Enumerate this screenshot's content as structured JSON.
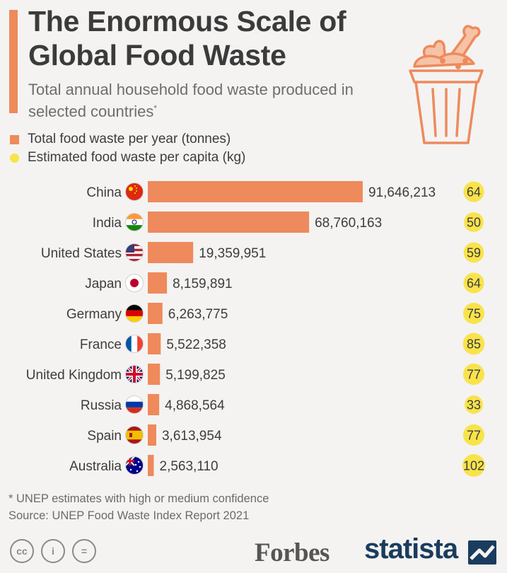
{
  "header": {
    "title": "The Enormous Scale of Global Food Waste",
    "subtitle": "Total annual household food waste produced in selected countries",
    "subtitle_mark": "*"
  },
  "legend": {
    "total_label": "Total food waste per year (tonnes)",
    "capita_label": "Estimated food waste per capita (kg)"
  },
  "chart_data": {
    "type": "bar",
    "orientation": "horizontal",
    "categories": [
      "China",
      "India",
      "United States",
      "Japan",
      "Germany",
      "France",
      "United Kingdom",
      "Russia",
      "Spain",
      "Australia"
    ],
    "series": [
      {
        "name": "Total food waste per year (tonnes)",
        "values": [
          91646213,
          68760163,
          19359951,
          8159891,
          6263775,
          5522358,
          5199825,
          4868564,
          3613954,
          2563110
        ],
        "labels": [
          "91,646,213",
          "68,760,163",
          "19,359,951",
          "8,159,891",
          "6,263,775",
          "5,522,358",
          "5,199,825",
          "4,868,564",
          "3,613,954",
          "2,563,110"
        ],
        "color": "#ee8a5c"
      },
      {
        "name": "Estimated food waste per capita (kg)",
        "values": [
          64,
          50,
          59,
          64,
          75,
          85,
          77,
          33,
          77,
          102
        ],
        "labels": [
          "64",
          "50",
          "59",
          "64",
          "75",
          "85",
          "77",
          "33",
          "77",
          "102"
        ],
        "color": "#f9e34b"
      }
    ],
    "title": "The Enormous Scale of Global Food Waste",
    "xlim": [
      0,
      91646213
    ]
  },
  "flags": [
    "china-flag-icon",
    "india-flag-icon",
    "us-flag-icon",
    "japan-flag-icon",
    "germany-flag-icon",
    "france-flag-icon",
    "uk-flag-icon",
    "russia-flag-icon",
    "spain-flag-icon",
    "australia-flag-icon"
  ],
  "footer": {
    "note": "* UNEP estimates with high or medium confidence",
    "source": "Source: UNEP Food Waste Index Report 2021",
    "cc": "cc",
    "by": "i",
    "nd": "=",
    "forbes": "Forbes",
    "statista": "statista"
  }
}
